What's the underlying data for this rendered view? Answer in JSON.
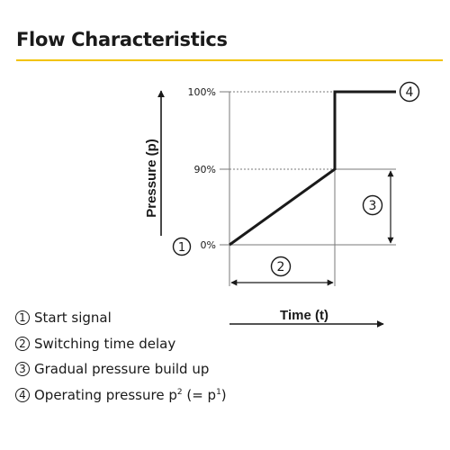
{
  "title": "Flow Characteristics",
  "colors": {
    "accent": "#f2c300",
    "line": "#1a1a1a",
    "guide": "#7a7a7a"
  },
  "diagram": {
    "y_axis_label": "Pressure (p)",
    "x_axis_label": "Time (t)",
    "y_ticks": [
      "0%",
      "90%",
      "100%"
    ],
    "markers": {
      "start": "1",
      "delay": "2",
      "build_up": "3",
      "operating": "4"
    }
  },
  "legend": [
    {
      "num": "1",
      "text": "Start signal"
    },
    {
      "num": "2",
      "text": "Switching time delay"
    },
    {
      "num": "3",
      "text": "Gradual pressure build up"
    },
    {
      "num": "4",
      "text": "Operating pressure p",
      "sup1": "2",
      "mid": " (= p",
      "sup2": "1",
      "end": ")"
    }
  ]
}
